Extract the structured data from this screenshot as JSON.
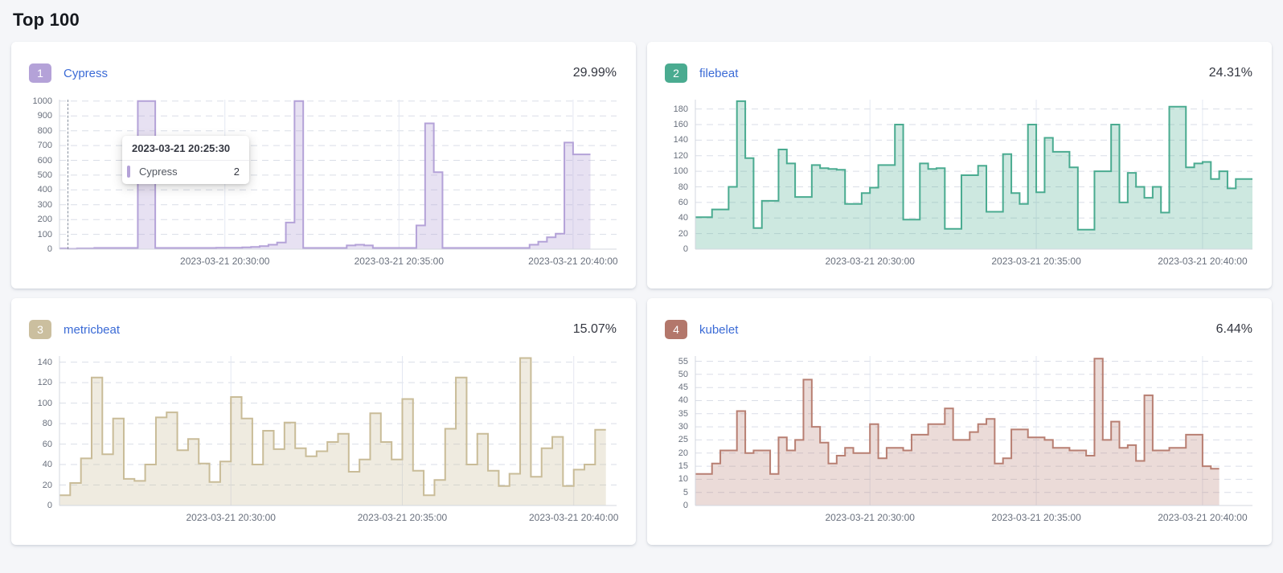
{
  "title": "Top 100",
  "x_axis_labels": [
    "2023-03-21 20:30:00",
    "2023-03-21 20:35:00",
    "2023-03-21 20:40:00"
  ],
  "chart_data": [
    {
      "type": "area",
      "step": true,
      "rank": "1",
      "title": "Cypress",
      "percent": "29.99%",
      "colors": {
        "line": "#b4a2d8",
        "fill": "rgba(180,162,216,0.32)",
        "badge": "#b4a2d8"
      },
      "y_max": 1010,
      "y_ticks": [
        1000,
        900,
        800,
        700,
        600,
        500,
        400,
        300,
        200,
        100,
        0
      ],
      "n_slots": 64,
      "x_labels": [
        {
          "index": 19,
          "label": "2023-03-21 20:30:00"
        },
        {
          "index": 39,
          "label": "2023-03-21 20:35:00"
        },
        {
          "index": 59,
          "label": "2023-03-21 20:40:00"
        }
      ],
      "values": [
        5,
        2,
        5,
        5,
        8,
        8,
        8,
        8,
        8,
        1000,
        1000,
        8,
        8,
        8,
        8,
        8,
        8,
        8,
        10,
        10,
        10,
        12,
        15,
        20,
        30,
        45,
        180,
        1000,
        8,
        8,
        8,
        8,
        8,
        25,
        30,
        25,
        8,
        8,
        8,
        8,
        8,
        160,
        850,
        520,
        8,
        8,
        8,
        8,
        8,
        8,
        8,
        8,
        8,
        8,
        30,
        50,
        80,
        105,
        720,
        640,
        640
      ],
      "tooltip": {
        "title": "2023-03-21 20:25:30",
        "series": "Cypress",
        "value": "2",
        "cursor_pct": 1.5
      }
    },
    {
      "type": "area",
      "step": true,
      "rank": "2",
      "title": "filebeat",
      "percent": "24.31%",
      "colors": {
        "line": "#4aab90",
        "fill": "rgba(74,171,144,0.28)",
        "badge": "#4aab90"
      },
      "y_max": 192,
      "y_ticks": [
        180,
        160,
        140,
        120,
        100,
        80,
        60,
        40,
        20,
        0
      ],
      "n_slots": 67,
      "x_labels": [
        {
          "index": 21,
          "label": "2023-03-21 20:30:00"
        },
        {
          "index": 41,
          "label": "2023-03-21 20:35:00"
        },
        {
          "index": 61,
          "label": "2023-03-21 20:40:00"
        }
      ],
      "values": [
        41,
        41,
        51,
        51,
        80,
        190,
        117,
        27,
        62,
        62,
        128,
        110,
        67,
        67,
        108,
        104,
        103,
        102,
        58,
        58,
        72,
        79,
        108,
        108,
        160,
        38,
        38,
        110,
        103,
        104,
        26,
        26,
        95,
        95,
        107,
        48,
        48,
        122,
        72,
        58,
        160,
        73,
        143,
        125,
        125,
        105,
        25,
        25,
        100,
        100,
        160,
        60,
        98,
        80,
        66,
        80,
        47,
        183,
        183,
        105,
        110,
        112,
        90,
        100,
        78,
        90,
        90
      ]
    },
    {
      "type": "area",
      "step": true,
      "rank": "3",
      "title": "metricbeat",
      "percent": "15.07%",
      "colors": {
        "line": "#c9bc98",
        "fill": "rgba(201,188,152,0.30)",
        "badge": "#cbbf9f"
      },
      "y_max": 146,
      "y_ticks": [
        140,
        120,
        100,
        80,
        60,
        40,
        20,
        0
      ],
      "n_slots": 52,
      "x_labels": [
        {
          "index": 16,
          "label": "2023-03-21 20:30:00"
        },
        {
          "index": 32,
          "label": "2023-03-21 20:35:00"
        },
        {
          "index": 48,
          "label": "2023-03-21 20:40:00"
        }
      ],
      "values": [
        10,
        22,
        46,
        125,
        50,
        85,
        26,
        24,
        40,
        86,
        91,
        54,
        65,
        41,
        23,
        43,
        106,
        85,
        40,
        73,
        55,
        81,
        56,
        48,
        53,
        62,
        70,
        33,
        45,
        90,
        62,
        45,
        104,
        34,
        10,
        25,
        75,
        125,
        40,
        70,
        34,
        19,
        31,
        144,
        28,
        56,
        67,
        19,
        35,
        40,
        74
      ]
    },
    {
      "type": "area",
      "step": true,
      "rank": "4",
      "title": "kubelet",
      "percent": "6.44%",
      "colors": {
        "line": "#b87f72",
        "fill": "rgba(184,127,114,0.28)",
        "badge": "#b3776b"
      },
      "y_max": 57,
      "y_ticks": [
        55,
        50,
        45,
        40,
        35,
        30,
        25,
        20,
        15,
        10,
        5,
        0
      ],
      "n_slots": 67,
      "x_labels": [
        {
          "index": 21,
          "label": "2023-03-21 20:30:00"
        },
        {
          "index": 41,
          "label": "2023-03-21 20:35:00"
        },
        {
          "index": 61,
          "label": "2023-03-21 20:40:00"
        }
      ],
      "values": [
        12,
        12,
        16,
        21,
        21,
        36,
        20,
        21,
        21,
        12,
        26,
        21,
        25,
        48,
        30,
        24,
        16,
        19,
        22,
        20,
        20,
        31,
        18,
        22,
        22,
        21,
        27,
        27,
        31,
        31,
        37,
        25,
        25,
        28,
        31,
        33,
        16,
        18,
        29,
        29,
        26,
        26,
        25,
        22,
        22,
        21,
        21,
        19,
        56,
        25,
        32,
        22,
        23,
        17,
        42,
        21,
        21,
        22,
        22,
        27,
        27,
        15,
        14
      ]
    }
  ]
}
